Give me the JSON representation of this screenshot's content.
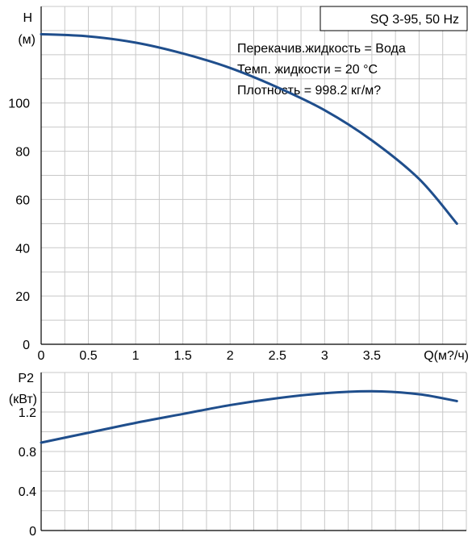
{
  "chart_data": [
    {
      "type": "line",
      "title": "SQ 3-95, 50 Hz",
      "annotations": [
        "Перекачив.жидкость = Вода",
        "Темп. жидкости = 20 °C",
        "Плотность = 998.2 кг/м?"
      ],
      "ylabel_symbol": "H",
      "ylabel_unit": "(м)",
      "xlabel": "Q(м?/ч)",
      "xlim": [
        0,
        4.5
      ],
      "ylim": [
        0,
        140
      ],
      "x_ticks": [
        0,
        0.5,
        1,
        1.5,
        2,
        2.5,
        3,
        3.5
      ],
      "x_tick_labels": [
        "0",
        "0.5",
        "1",
        "1.5",
        "2",
        "2.5",
        "3",
        "3.5"
      ],
      "y_ticks": [
        0,
        20,
        40,
        60,
        80,
        100
      ],
      "grid": true,
      "colors": {
        "curve": "#1f4e8c",
        "grid": "#c8c8c8",
        "axis": "#000000"
      },
      "series": [
        {
          "x": [
            0,
            0.5,
            1,
            1.5,
            2,
            2.5,
            3,
            3.5,
            4,
            4.4
          ],
          "y": [
            128.5,
            127.6,
            125,
            120.5,
            114.5,
            106.5,
            97,
            84.5,
            68.5,
            50
          ]
        }
      ]
    },
    {
      "type": "line",
      "ylabel_symbol": "P2",
      "ylabel_unit": "(кВт)",
      "xlim": [
        0,
        4.5
      ],
      "ylim": [
        0,
        1.6
      ],
      "y_ticks": [
        0,
        0.4,
        0.8,
        1.2
      ],
      "y_tick_labels": [
        "0",
        "0.4",
        "0.8",
        "1.2"
      ],
      "grid": true,
      "colors": {
        "curve": "#1f4e8c",
        "grid": "#c8c8c8",
        "axis": "#000000"
      },
      "series": [
        {
          "x": [
            0,
            0.5,
            1,
            1.5,
            2,
            2.5,
            3,
            3.5,
            4,
            4.4
          ],
          "y": [
            0.89,
            0.99,
            1.09,
            1.18,
            1.27,
            1.34,
            1.39,
            1.41,
            1.38,
            1.31
          ]
        }
      ]
    }
  ]
}
